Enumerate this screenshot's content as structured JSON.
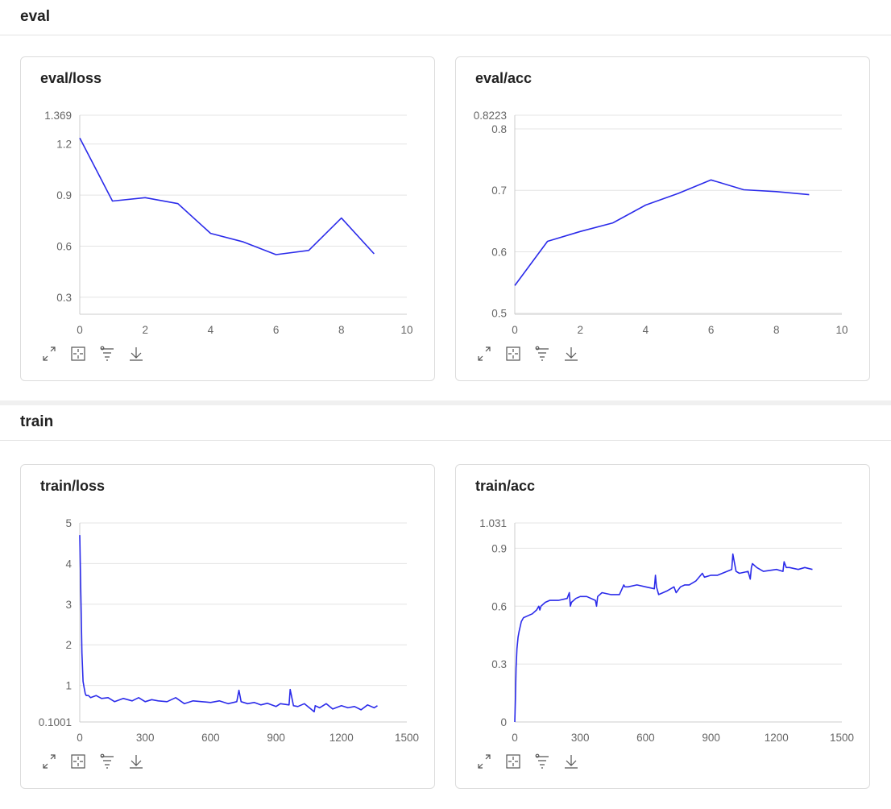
{
  "sections": [
    {
      "title": "eval"
    },
    {
      "title": "train"
    }
  ],
  "colors": {
    "line": "#2b2bea",
    "grid": "#e4e4e4",
    "axis": "#cccccc",
    "tick_text": "#666666"
  },
  "toolbar_icons": [
    "expand-icon",
    "fit-icon",
    "filter-icon",
    "download-icon"
  ],
  "chart_data": [
    {
      "type": "line",
      "title": "eval/loss",
      "xlabel": "",
      "ylabel": "",
      "xlim": [
        0,
        10
      ],
      "ylim": [
        0.2,
        1.369
      ],
      "x_ticks": [
        "0",
        "2",
        "4",
        "6",
        "8",
        "10"
      ],
      "y_ticks": [
        "1.369",
        "1.2",
        "0.9",
        "0.6",
        "0.3"
      ],
      "grid": true,
      "series": [
        {
          "x": [
            0,
            1,
            2,
            3,
            4,
            5,
            6,
            7,
            8,
            9
          ],
          "values": [
            1.235,
            0.865,
            0.885,
            0.85,
            0.675,
            0.625,
            0.55,
            0.575,
            0.765,
            0.555
          ]
        }
      ]
    },
    {
      "type": "line",
      "title": "eval/acc",
      "xlabel": "",
      "ylabel": "",
      "xlim": [
        0,
        10
      ],
      "ylim": [
        0.4983,
        0.8223
      ],
      "x_ticks": [
        "0",
        "2",
        "4",
        "6",
        "8",
        "10"
      ],
      "y_ticks": [
        "0.8223",
        "0.8",
        "0.7",
        "0.6",
        "0.5"
      ],
      "grid": true,
      "series": [
        {
          "x": [
            0,
            1,
            2,
            3,
            4,
            5,
            6,
            7,
            8,
            9
          ],
          "values": [
            0.545,
            0.617,
            0.633,
            0.647,
            0.676,
            0.695,
            0.717,
            0.701,
            0.698,
            0.693
          ]
        }
      ]
    },
    {
      "type": "line",
      "title": "train/loss",
      "xlabel": "",
      "ylabel": "",
      "xlim": [
        0,
        1500
      ],
      "ylim": [
        0.1001,
        5.0
      ],
      "x_ticks": [
        "0",
        "300",
        "600",
        "900",
        "1200",
        "1500"
      ],
      "y_ticks": [
        "5",
        "4",
        "3",
        "2",
        "1",
        "0.1001"
      ],
      "grid": true,
      "series": [
        {
          "x": [
            0,
            5,
            10,
            15,
            20,
            25,
            30,
            40,
            50,
            60,
            75,
            100,
            130,
            160,
            200,
            240,
            270,
            300,
            330,
            360,
            400,
            440,
            480,
            520,
            560,
            600,
            640,
            680,
            720,
            730,
            740,
            770,
            800,
            830,
            860,
            900,
            920,
            960,
            965,
            980,
            1000,
            1030,
            1060,
            1075,
            1080,
            1100,
            1130,
            1160,
            1200,
            1230,
            1260,
            1290,
            1320,
            1350,
            1365
          ],
          "values": [
            4.7,
            3.2,
            1.8,
            1.1,
            0.95,
            0.8,
            0.75,
            0.75,
            0.7,
            0.72,
            0.75,
            0.68,
            0.7,
            0.6,
            0.68,
            0.62,
            0.7,
            0.6,
            0.65,
            0.62,
            0.6,
            0.7,
            0.55,
            0.62,
            0.6,
            0.58,
            0.62,
            0.55,
            0.6,
            0.88,
            0.6,
            0.55,
            0.58,
            0.52,
            0.56,
            0.48,
            0.55,
            0.52,
            0.9,
            0.5,
            0.48,
            0.55,
            0.42,
            0.35,
            0.5,
            0.45,
            0.55,
            0.42,
            0.5,
            0.45,
            0.48,
            0.4,
            0.52,
            0.45,
            0.5
          ]
        }
      ]
    },
    {
      "type": "line",
      "title": "train/acc",
      "xlabel": "",
      "ylabel": "",
      "xlim": [
        0,
        1500
      ],
      "ylim": [
        0,
        1.031
      ],
      "x_ticks": [
        "0",
        "300",
        "600",
        "900",
        "1200",
        "1500"
      ],
      "y_ticks": [
        "1.031",
        "0.9",
        "0.6",
        "0.3",
        "0"
      ],
      "grid": true,
      "series": [
        {
          "x": [
            0,
            3,
            6,
            10,
            15,
            20,
            30,
            40,
            60,
            80,
            100,
            110,
            115,
            120,
            140,
            160,
            200,
            240,
            250,
            255,
            260,
            280,
            300,
            330,
            370,
            375,
            380,
            400,
            440,
            480,
            500,
            505,
            520,
            560,
            600,
            640,
            645,
            650,
            660,
            700,
            730,
            740,
            760,
            780,
            800,
            830,
            860,
            865,
            870,
            900,
            930,
            995,
            1000,
            1005,
            1015,
            1030,
            1070,
            1080,
            1085,
            1090,
            1110,
            1140,
            1200,
            1230,
            1235,
            1245,
            1260,
            1300,
            1330,
            1365
          ],
          "values": [
            0,
            0.12,
            0.28,
            0.38,
            0.44,
            0.47,
            0.52,
            0.54,
            0.55,
            0.56,
            0.58,
            0.6,
            0.58,
            0.6,
            0.62,
            0.63,
            0.63,
            0.64,
            0.67,
            0.6,
            0.62,
            0.64,
            0.65,
            0.65,
            0.63,
            0.6,
            0.65,
            0.67,
            0.66,
            0.66,
            0.71,
            0.7,
            0.7,
            0.71,
            0.7,
            0.69,
            0.76,
            0.7,
            0.66,
            0.68,
            0.7,
            0.67,
            0.7,
            0.71,
            0.71,
            0.73,
            0.77,
            0.76,
            0.75,
            0.76,
            0.76,
            0.79,
            0.87,
            0.84,
            0.78,
            0.77,
            0.78,
            0.74,
            0.8,
            0.82,
            0.8,
            0.78,
            0.79,
            0.78,
            0.83,
            0.8,
            0.8,
            0.79,
            0.8,
            0.79
          ]
        }
      ]
    }
  ]
}
